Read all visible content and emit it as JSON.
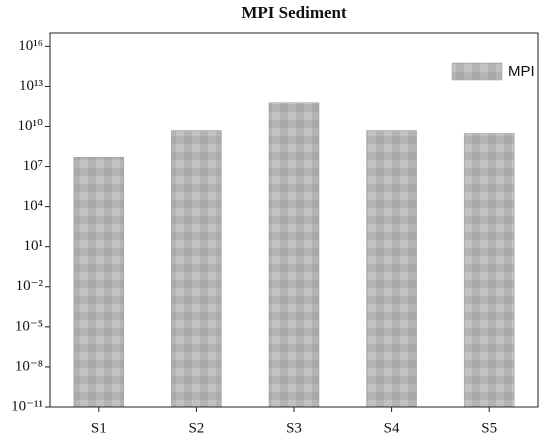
{
  "chart_data": {
    "type": "bar",
    "title": "MPI Sediment",
    "categories": [
      "S1",
      "S2",
      "S3",
      "S4",
      "S5"
    ],
    "series": [
      {
        "name": "MPI",
        "color": "#b4b4b4",
        "values": [
          50000000,
          5000000000,
          600000000000,
          5000000000,
          3000000000
        ]
      }
    ],
    "log_scale": true,
    "ylim": [
      1e-11,
      1e+17
    ],
    "yticks": [
      {
        "value": 1e-11,
        "label": "10⁻¹¹"
      },
      {
        "value": 1e-08,
        "label": "10⁻⁸"
      },
      {
        "value": 1e-05,
        "label": "10⁻⁵"
      },
      {
        "value": 0.01,
        "label": "10⁻²"
      },
      {
        "value": 10,
        "label": "10¹"
      },
      {
        "value": 10000,
        "label": "10⁴"
      },
      {
        "value": 10000000,
        "label": "10⁷"
      },
      {
        "value": 10000000000,
        "label": "10¹⁰"
      },
      {
        "value": 10000000000000,
        "label": "10¹³"
      },
      {
        "value": 10000000000000000,
        "label": "10¹⁶"
      }
    ],
    "legend": "upper right"
  }
}
